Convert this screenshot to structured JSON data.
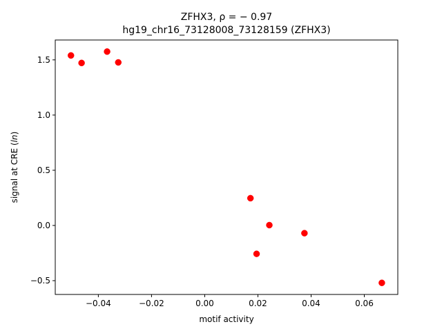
{
  "chart_data": {
    "type": "scatter",
    "title_line1": "ZFHX3, ρ = − 0.97",
    "title_line2": "hg19_chr16_73128008_73128159 (ZFHX3)",
    "xlabel": "motif activity",
    "ylabel_prefix": "signal at CRE (",
    "ylabel_italic": "ln",
    "ylabel_suffix": ")",
    "xlim": [
      -0.0562,
      0.0726
    ],
    "ylim": [
      -0.625,
      1.68
    ],
    "xticks": [
      {
        "value": -0.04,
        "label": "−0.04"
      },
      {
        "value": -0.02,
        "label": "−0.02"
      },
      {
        "value": 0.0,
        "label": "0.00"
      },
      {
        "value": 0.02,
        "label": "0.02"
      },
      {
        "value": 0.04,
        "label": "0.04"
      },
      {
        "value": 0.06,
        "label": "0.06"
      }
    ],
    "yticks": [
      {
        "value": -0.5,
        "label": "−0.5"
      },
      {
        "value": 0.0,
        "label": "0.0"
      },
      {
        "value": 0.5,
        "label": "0.5"
      },
      {
        "value": 1.0,
        "label": "1.0"
      },
      {
        "value": 1.5,
        "label": "1.5"
      }
    ],
    "grid": false,
    "marker_color": "#ff0000",
    "points": [
      {
        "x": -0.0503,
        "y": 1.54
      },
      {
        "x": -0.0463,
        "y": 1.472
      },
      {
        "x": -0.0367,
        "y": 1.575
      },
      {
        "x": -0.0325,
        "y": 1.477
      },
      {
        "x": 0.0172,
        "y": 0.247
      },
      {
        "x": 0.0195,
        "y": -0.257
      },
      {
        "x": 0.0243,
        "y": 0.003
      },
      {
        "x": 0.0375,
        "y": -0.07
      },
      {
        "x": 0.0666,
        "y": -0.52
      }
    ]
  }
}
